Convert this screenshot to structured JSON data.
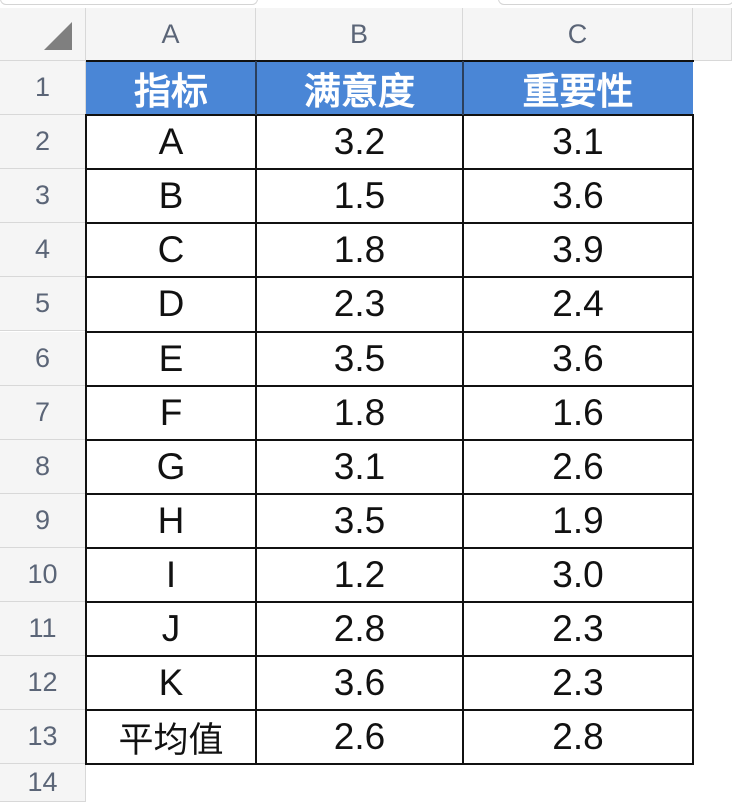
{
  "sheet": {
    "columns": [
      "A",
      "B",
      "C"
    ],
    "rows": [
      "1",
      "2",
      "3",
      "4",
      "5",
      "6",
      "7",
      "8",
      "9",
      "10",
      "11",
      "12",
      "13",
      "14"
    ]
  },
  "table": {
    "headers": [
      "指标",
      "满意度",
      "重要性"
    ],
    "rows": [
      [
        "A",
        "3.2",
        "3.1"
      ],
      [
        "B",
        "1.5",
        "3.6"
      ],
      [
        "C",
        "1.8",
        "3.9"
      ],
      [
        "D",
        "2.3",
        "2.4"
      ],
      [
        "E",
        "3.5",
        "3.6"
      ],
      [
        "F",
        "1.8",
        "1.6"
      ],
      [
        "G",
        "3.1",
        "2.6"
      ],
      [
        "H",
        "3.5",
        "1.9"
      ],
      [
        "I",
        "1.2",
        "3.0"
      ],
      [
        "J",
        "2.8",
        "2.3"
      ],
      [
        "K",
        "3.6",
        "2.3"
      ],
      [
        "平均值",
        "2.6",
        "2.8"
      ]
    ]
  },
  "colors": {
    "header_fill": "#4a86d6",
    "header_text": "#ffffff",
    "grid_line": "#111111",
    "sheet_header_bg": "#f5f5f5",
    "sheet_header_text": "#5b6577"
  }
}
